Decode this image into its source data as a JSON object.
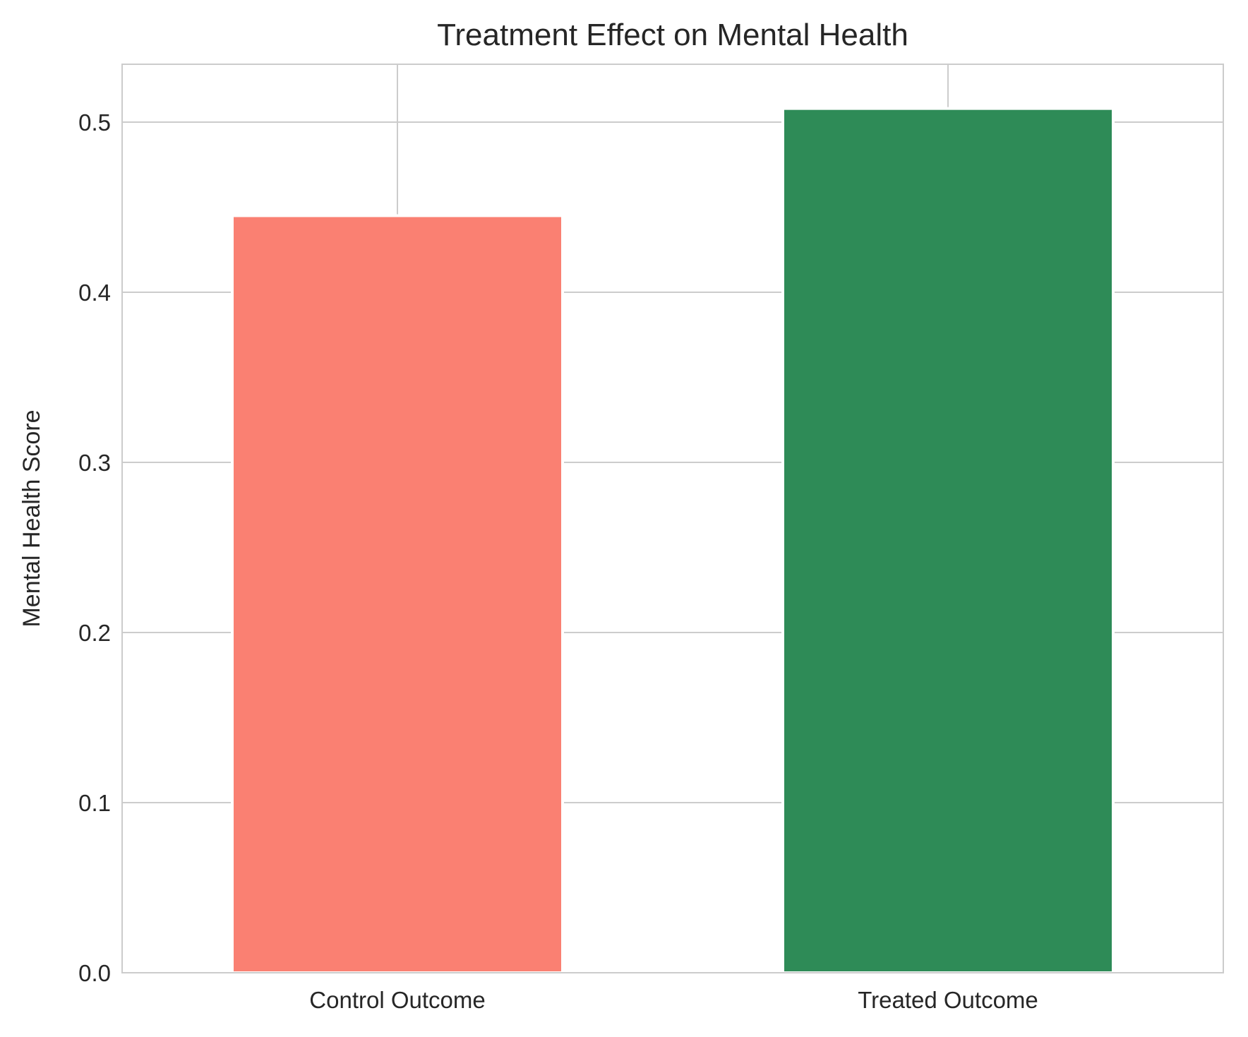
{
  "chart_data": {
    "type": "bar",
    "title": "Treatment Effect on Mental Health",
    "xlabel": "",
    "ylabel": "Mental Health Score",
    "categories": [
      "Control Outcome",
      "Treated Outcome"
    ],
    "values": [
      0.445,
      0.508
    ],
    "colors": [
      "#FA8072",
      "#2E8B57"
    ],
    "ylim": [
      0,
      0.534
    ],
    "yticks": [
      "0.0",
      "0.1",
      "0.2",
      "0.3",
      "0.4",
      "0.5"
    ],
    "grid": true,
    "legend": "none"
  }
}
